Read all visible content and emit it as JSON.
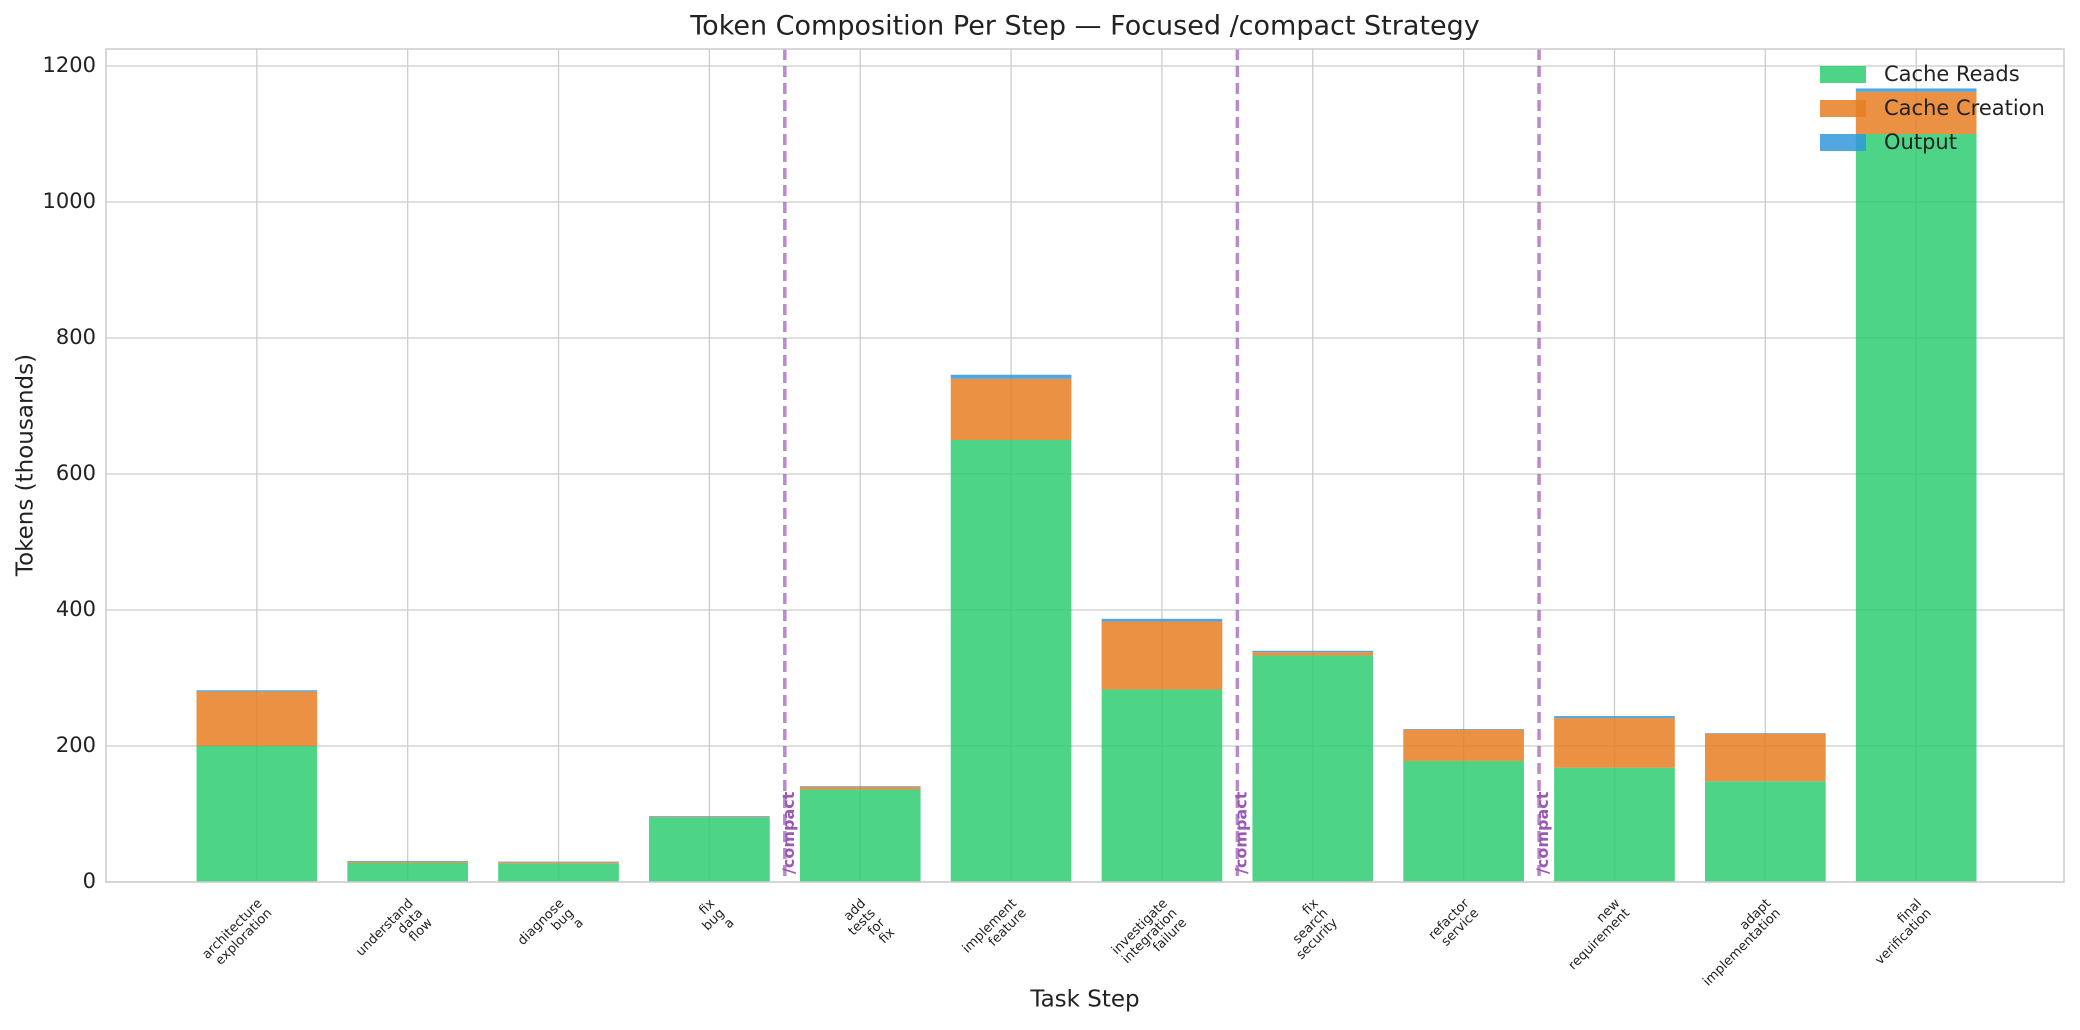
{
  "chart_data": {
    "type": "stacked_bar",
    "title": "Token Composition Per Step — Focused /compact Strategy",
    "xlabel": "Task Step",
    "ylabel": "Tokens (thousands)",
    "categories": [
      "architecture\nexploration",
      "understand\ndata\nflow",
      "diagnose\nbug\na",
      "fix\nbug\na",
      "add\ntests\nfor\nfix",
      "implement\nfeature",
      "investigate\nintegration\nfailure",
      "fix\nsearch\nsecurity",
      "refactor\nservice",
      "new\nrequirement",
      "adapt\nimplementation",
      "final\nverification"
    ],
    "series": [
      {
        "name": "Cache Reads",
        "color": "#2ecc71",
        "values": [
          200,
          28,
          27,
          95,
          136,
          650,
          283,
          333,
          178,
          168,
          148,
          1100
        ]
      },
      {
        "name": "Cache Creation",
        "color": "#e67e22",
        "values": [
          80,
          2,
          2,
          1,
          4,
          90,
          100,
          5,
          46,
          73,
          70,
          62
        ]
      },
      {
        "name": "Output",
        "color": "#3498db",
        "values": [
          2,
          1,
          1,
          1,
          1,
          6,
          4,
          2,
          1,
          3,
          1,
          5
        ]
      }
    ],
    "ylim": [
      0,
      1225
    ],
    "yticks": [
      0,
      200,
      400,
      600,
      800,
      1000,
      1200
    ],
    "grid": true,
    "legend": "upper right",
    "compact_markers": {
      "label": "/compact",
      "color": "#9b59b6",
      "x": [
        3.5,
        6.5,
        8.5
      ]
    }
  }
}
